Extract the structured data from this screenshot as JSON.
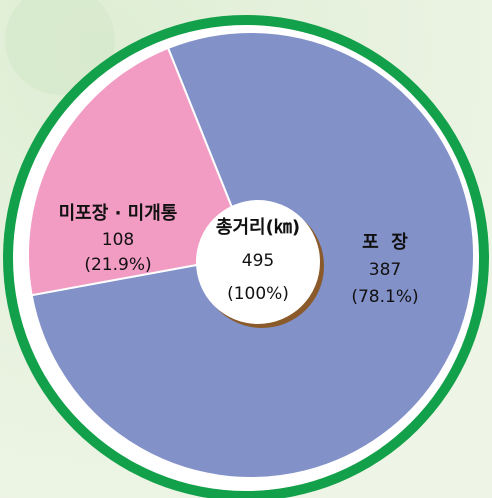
{
  "chart_data": {
    "type": "pie",
    "categories": [
      "포  장",
      "미포장 · 미개통"
    ],
    "values": [
      387,
      108
    ],
    "percent_labels": [
      "(78.1%)",
      "(21.9%)"
    ],
    "colors": [
      "#8391c9",
      "#f29bc3"
    ],
    "center": {
      "title": "총거리(㎞)",
      "value": 495,
      "label": "(100%)"
    }
  }
}
